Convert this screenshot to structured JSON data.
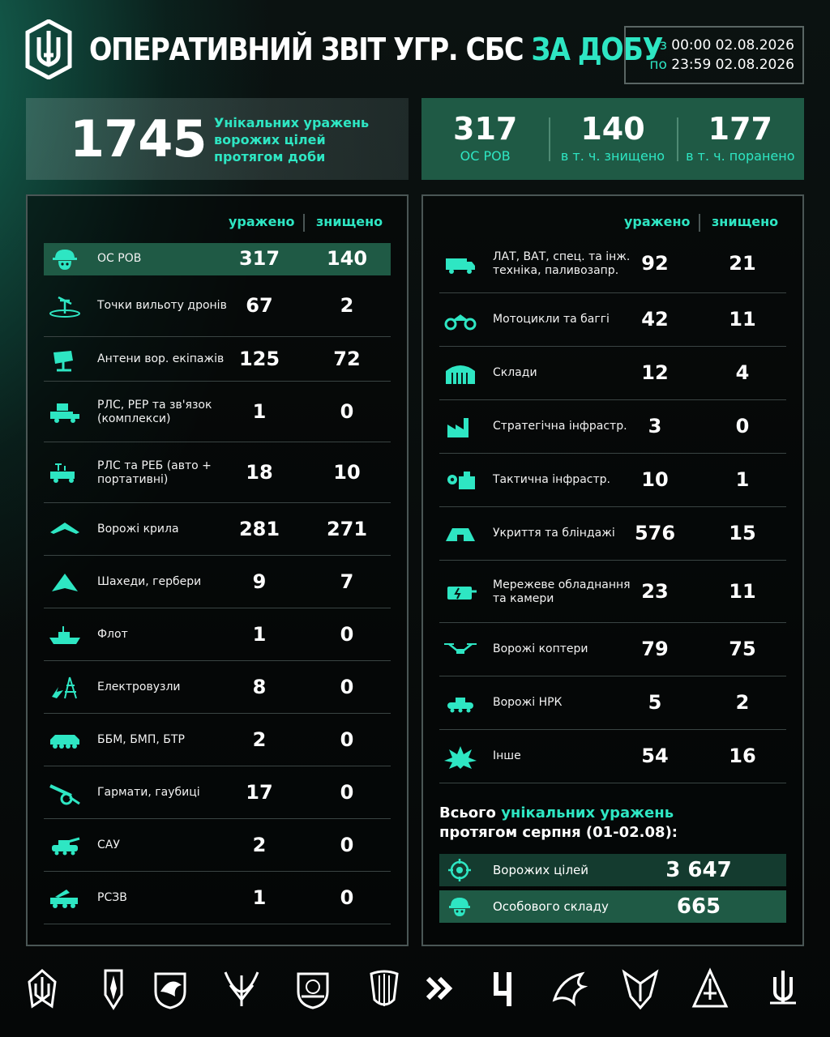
{
  "header": {
    "title_main": "ОПЕРАТИВНИЙ ЗВІТ УГР. СБС ",
    "title_accent": "ЗА ДОБУ",
    "from_prefix": "з",
    "from_value": "00:00 02.08.2026",
    "to_prefix": "по",
    "to_value": "23:59 02.08.2026"
  },
  "totals": {
    "unique_hits": "1745",
    "unique_label": "Унікальних уражень ворожих цілей протягом доби",
    "os_rov_value": "317",
    "os_rov_label": "ОС РОВ",
    "destroyed_value": "140",
    "destroyed_label": "в т. ч. знищено",
    "wounded_value": "177",
    "wounded_label": "в т. ч. поранено"
  },
  "columns": {
    "hit": "уражено",
    "destroyed": "знищено"
  },
  "left_rows": [
    {
      "label": "ОС РОВ",
      "hit": "317",
      "destroyed": "140",
      "icon": "soldier-helmet-icon"
    },
    {
      "label": "Точки вильоту дронів",
      "hit": "67",
      "destroyed": "2",
      "icon": "drone-launch-point-icon"
    },
    {
      "label": "Антени вор. екіпажів",
      "hit": "125",
      "destroyed": "72",
      "icon": "antenna-icon"
    },
    {
      "label": "РЛС, РЕР та зв'язок (комплекси)",
      "hit": "1",
      "destroyed": "0",
      "icon": "radar-truck-icon"
    },
    {
      "label": "РЛС та РЕБ (авто + портативні)",
      "hit": "18",
      "destroyed": "10",
      "icon": "ew-vehicle-icon"
    },
    {
      "label": "Ворожі крила",
      "hit": "281",
      "destroyed": "271",
      "icon": "wing-icon"
    },
    {
      "label": "Шахеди, гербери",
      "hit": "9",
      "destroyed": "7",
      "icon": "shahed-icon"
    },
    {
      "label": "Флот",
      "hit": "1",
      "destroyed": "0",
      "icon": "ship-icon"
    },
    {
      "label": "Електровузли",
      "hit": "8",
      "destroyed": "0",
      "icon": "power-node-icon"
    },
    {
      "label": "ББМ, БМП, БТР",
      "hit": "2",
      "destroyed": "0",
      "icon": "apc-icon"
    },
    {
      "label": "Гармати, гаубиці",
      "hit": "17",
      "destroyed": "0",
      "icon": "howitzer-icon"
    },
    {
      "label": "САУ",
      "hit": "2",
      "destroyed": "0",
      "icon": "spg-icon"
    },
    {
      "label": "РСЗВ",
      "hit": "1",
      "destroyed": "0",
      "icon": "mlrs-icon"
    }
  ],
  "right_rows": [
    {
      "label": "ЛАТ, ВАТ, спец. та інж. техніка, паливозапр.",
      "hit": "92",
      "destroyed": "21",
      "icon": "truck-icon"
    },
    {
      "label": "Мотоцикли та баггі",
      "hit": "42",
      "destroyed": "11",
      "icon": "motorcycle-icon"
    },
    {
      "label": "Склади",
      "hit": "12",
      "destroyed": "4",
      "icon": "warehouse-icon"
    },
    {
      "label": "Стратегічна інфрастр.",
      "hit": "3",
      "destroyed": "0",
      "icon": "factory-icon"
    },
    {
      "label": "Тактична інфрастр.",
      "hit": "10",
      "destroyed": "1",
      "icon": "gear-building-icon"
    },
    {
      "label": "Укриття та бліндажі",
      "hit": "576",
      "destroyed": "15",
      "icon": "bunker-icon"
    },
    {
      "label": "Мережеве обладнання та камери",
      "hit": "23",
      "destroyed": "11",
      "icon": "network-device-icon"
    },
    {
      "label": "Ворожі коптери",
      "hit": "79",
      "destroyed": "75",
      "icon": "quadcopter-icon"
    },
    {
      "label": "Ворожі НРК",
      "hit": "5",
      "destroyed": "2",
      "icon": "ground-robot-icon"
    },
    {
      "label": "Інше",
      "hit": "54",
      "destroyed": "16",
      "icon": "explosion-icon"
    }
  ],
  "summary": {
    "title_pre": "Всього ",
    "title_accent": "унікальних уражень",
    "title_line2": "протягом серпня (01-02.08):",
    "rows": [
      {
        "label": "Ворожих цілей",
        "value": "3 647",
        "icon": "target-icon"
      },
      {
        "label": "Особового складу",
        "value": "665",
        "icon": "soldier-helmet-icon"
      }
    ]
  },
  "colors": {
    "accent": "#2ee6c3",
    "highlight": "#1f5a45",
    "background": "#07090a"
  }
}
